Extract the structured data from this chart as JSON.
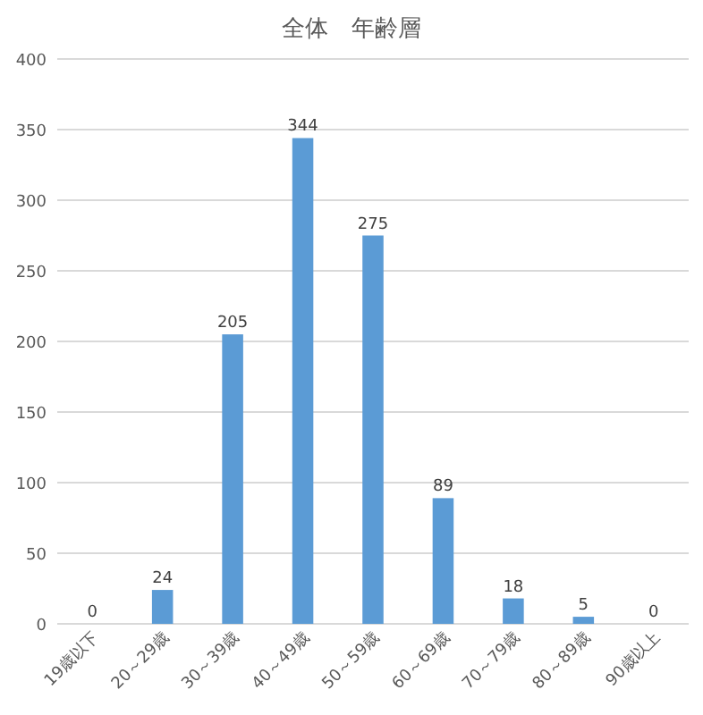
{
  "chart_data": {
    "type": "bar",
    "title": "全体　年齢層",
    "categories": [
      "19歳以下",
      "20～29歳",
      "30～39歳",
      "40～49歳",
      "50～59歳",
      "60～69歳",
      "70～79歳",
      "80～89歳",
      "90歳以上"
    ],
    "values": [
      0,
      24,
      205,
      344,
      275,
      89,
      18,
      5,
      0
    ],
    "color": "#5b9bd5",
    "ylim": [
      0,
      400
    ],
    "yticks": [
      0,
      50,
      100,
      150,
      200,
      250,
      300,
      350,
      400
    ],
    "grid": "y",
    "data_labels": true
  }
}
